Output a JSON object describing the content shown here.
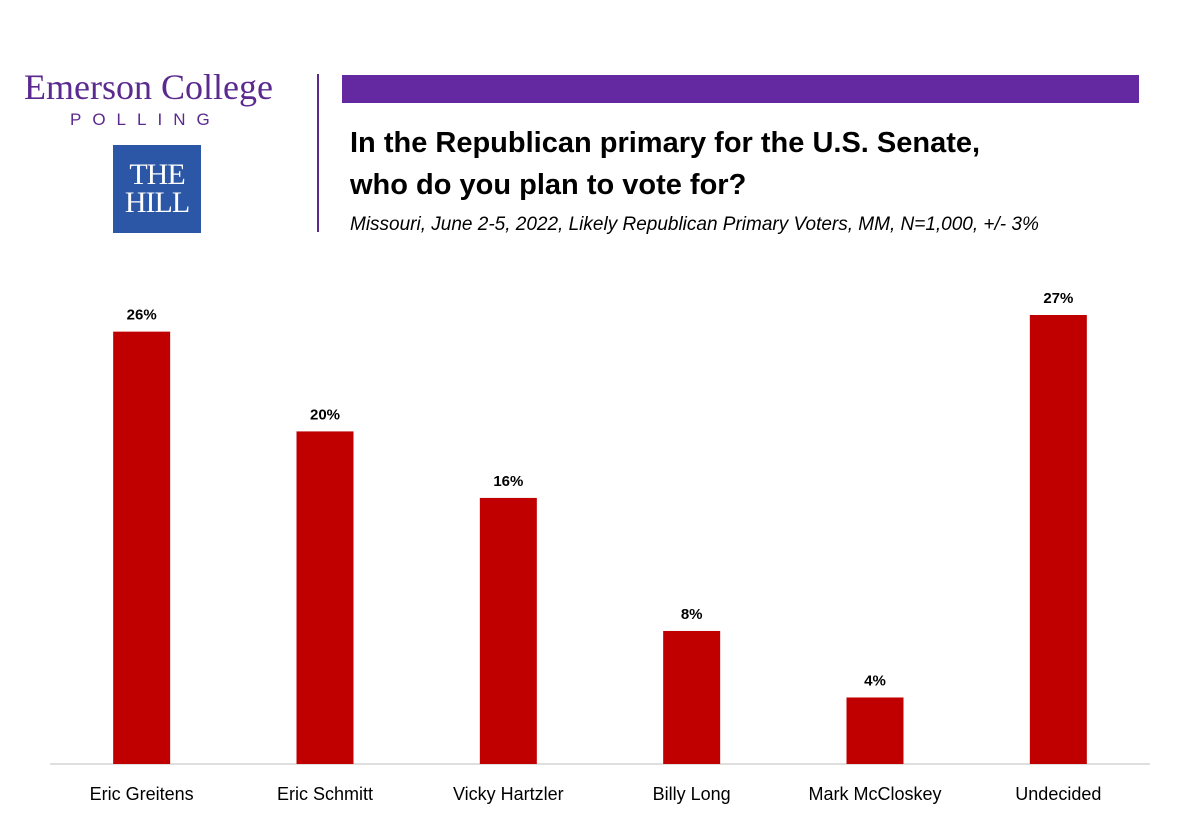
{
  "branding": {
    "emerson_name": "Emerson College",
    "emerson_sub": "POLLING",
    "hill_line1": "THE",
    "hill_line2": "HILL"
  },
  "colors": {
    "accent_bar": "#6428a0",
    "brand_purple": "#5b2a8f",
    "hill_blue": "#2c57a7",
    "bar": "#c00000"
  },
  "chart_data": {
    "type": "bar",
    "title_lines": [
      "In the Republican primary for the U.S. Senate,",
      "who do you plan to vote for?"
    ],
    "subtitle": "Missouri, June 2-5, 2022, Likely Republican Primary Voters, MM, N=1,000, +/- 3%",
    "categories": [
      "Eric Greitens",
      "Eric Schmitt",
      "Vicky Hartzler",
      "Billy Long",
      "Mark McCloskey",
      "Undecided"
    ],
    "values": [
      26,
      20,
      16,
      8,
      4,
      27
    ],
    "data_labels": [
      "26%",
      "20%",
      "16%",
      "8%",
      "4%",
      "27%"
    ],
    "xlabel": "",
    "ylabel": "",
    "ylim": [
      0,
      27
    ],
    "grid": false,
    "legend": "none"
  }
}
